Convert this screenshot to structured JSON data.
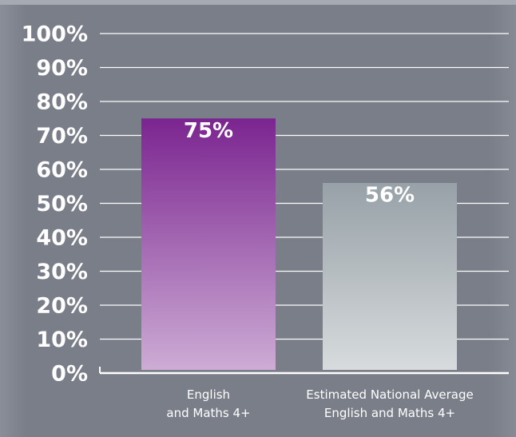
{
  "chart_data": {
    "type": "bar",
    "categories": [
      "English\nand Maths 4+",
      "Estimated National Average\nEnglish and Maths 4+"
    ],
    "values": [
      75,
      56
    ],
    "value_labels": [
      "75%",
      "56%"
    ],
    "colors": [
      "#7b2590",
      "#97a1a7"
    ],
    "ylim": [
      0,
      100
    ],
    "yticks": [
      {
        "value": 0,
        "label": "0%"
      },
      {
        "value": 10,
        "label": "10%"
      },
      {
        "value": 20,
        "label": "20%"
      },
      {
        "value": 30,
        "label": "30%"
      },
      {
        "value": 40,
        "label": "40%"
      },
      {
        "value": 50,
        "label": "50%"
      },
      {
        "value": 60,
        "label": "60%"
      },
      {
        "value": 70,
        "label": "70%"
      },
      {
        "value": 80,
        "label": "80%"
      },
      {
        "value": 90,
        "label": "90%"
      },
      {
        "value": 100,
        "label": "100%"
      }
    ],
    "grid": true
  }
}
